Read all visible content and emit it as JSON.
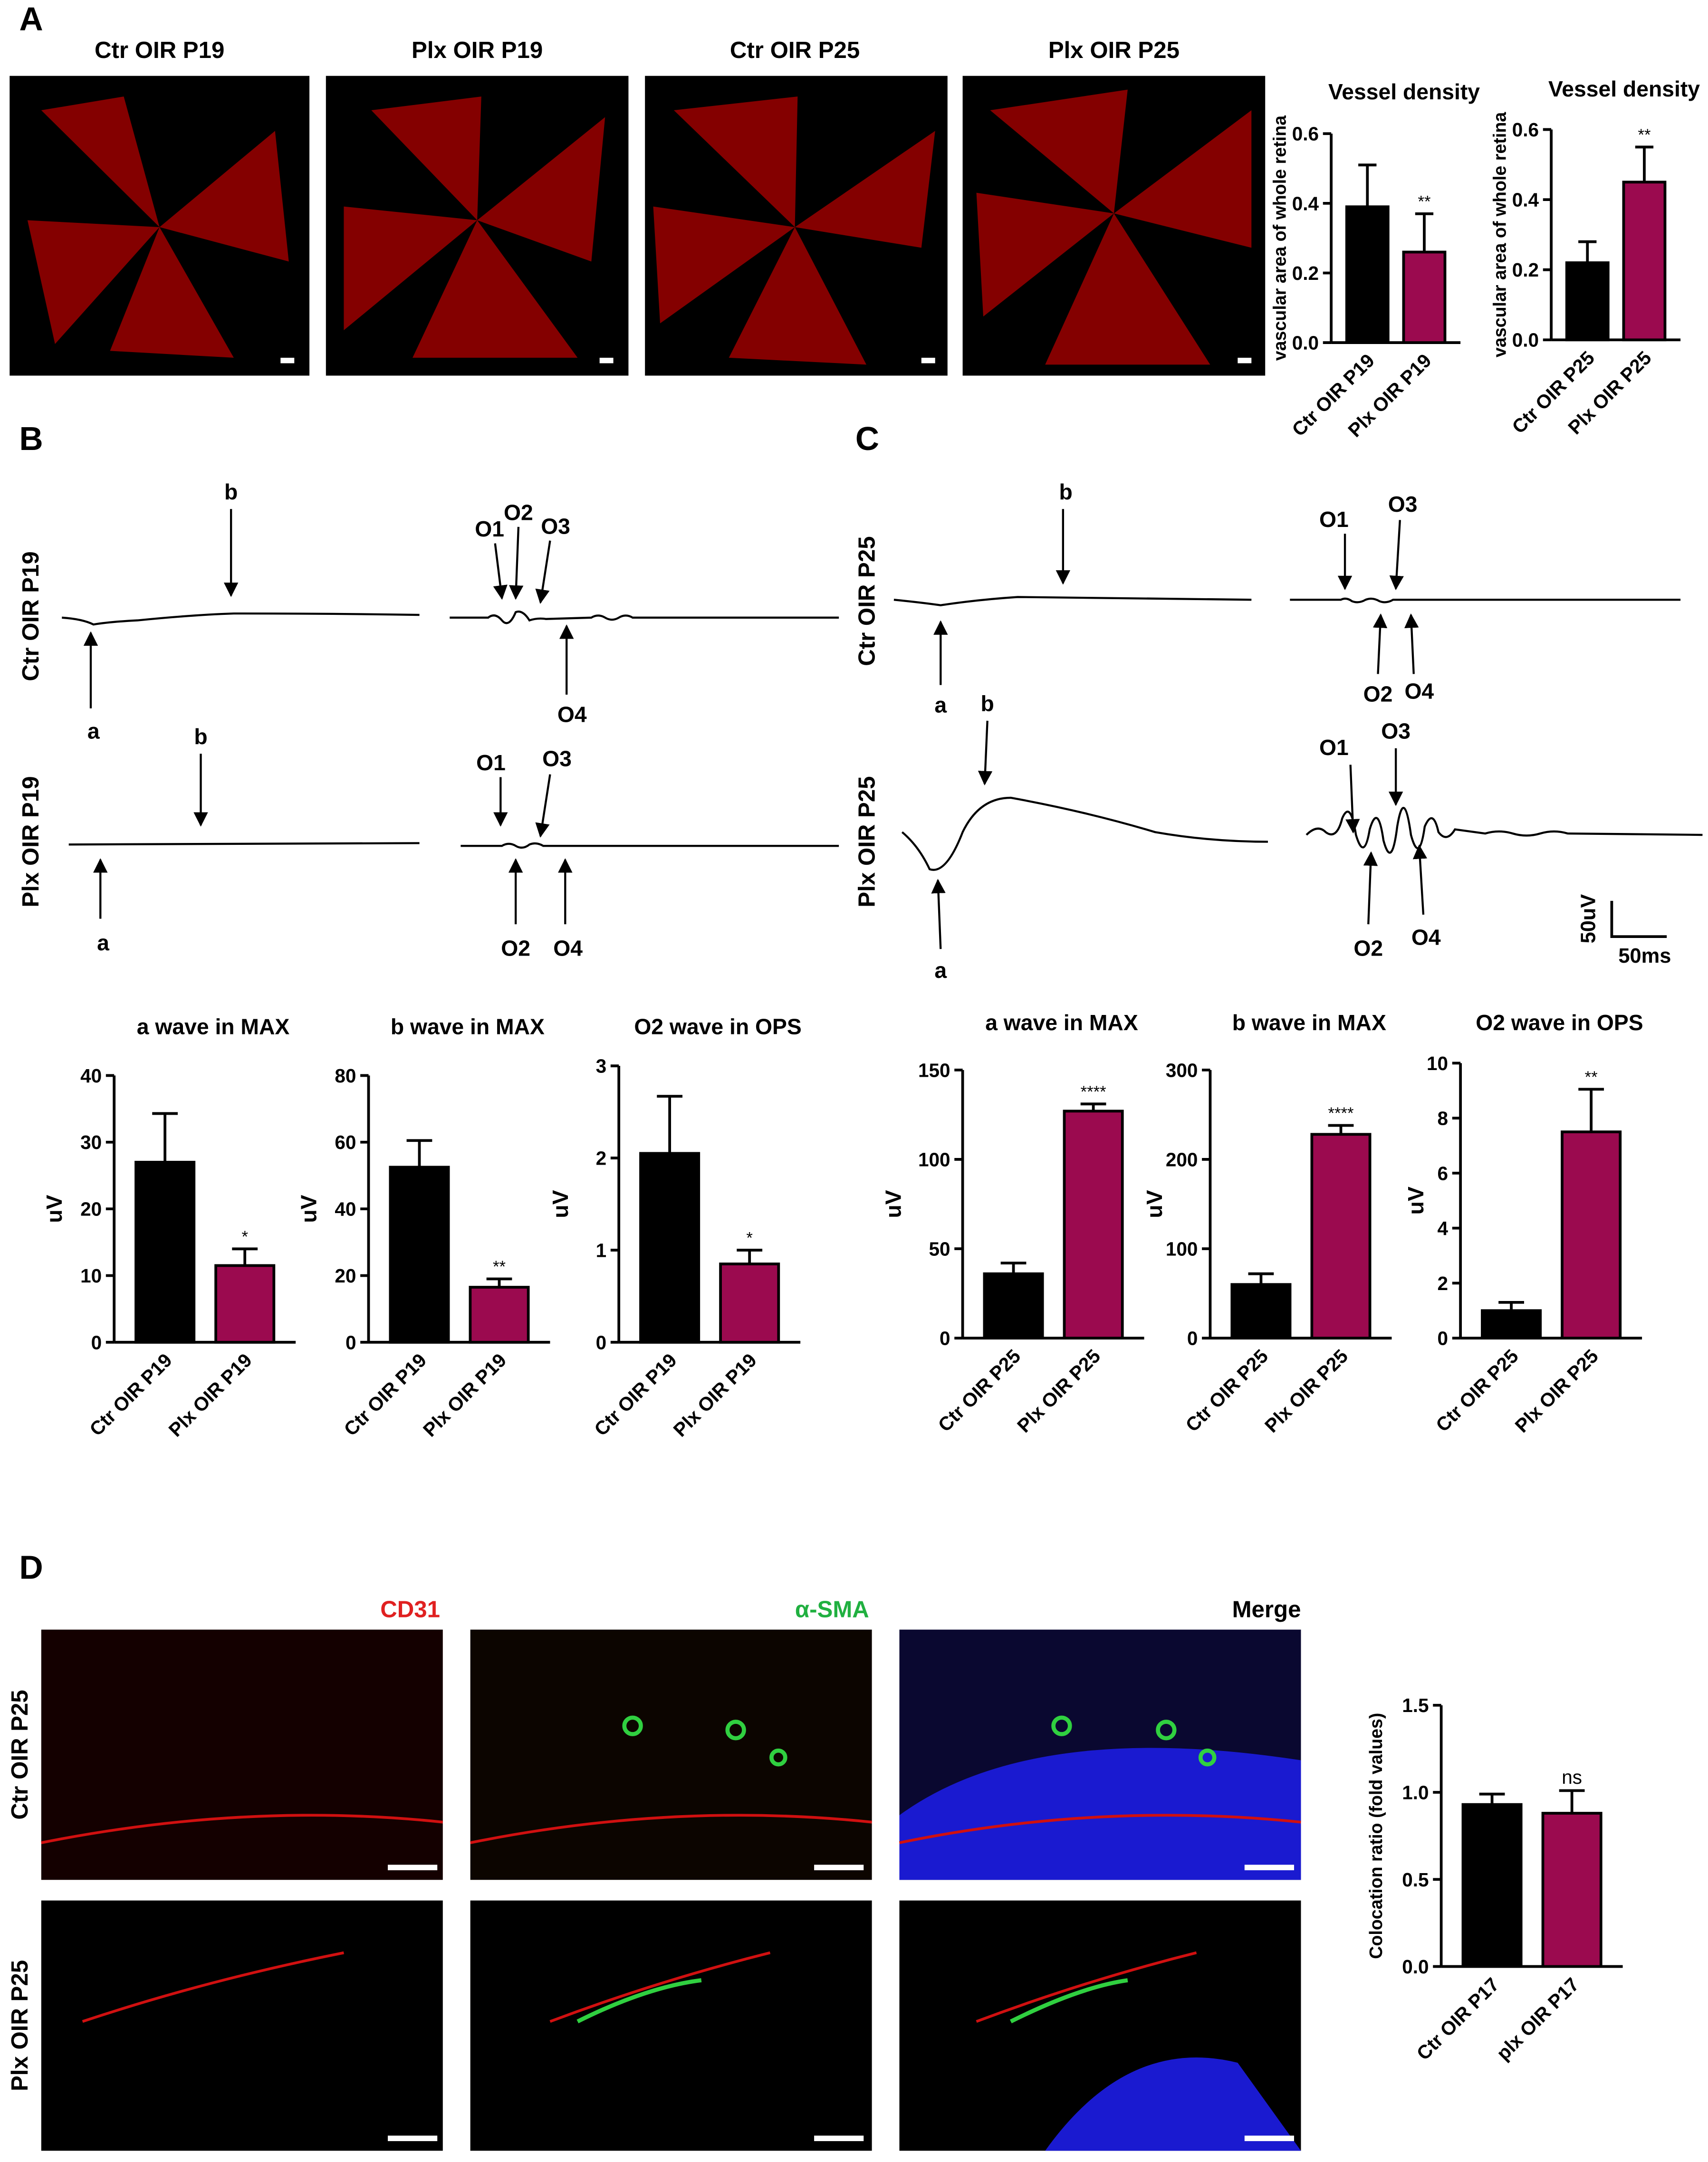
{
  "panel_labels": [
    "A",
    "B",
    "C",
    "D"
  ],
  "retina_images": [
    "Ctr OIR P19",
    "Plx OIR P19",
    "Ctr OIR P25",
    "Plx OIR P25"
  ],
  "erg": [
    {
      "label": "Ctr OIR P19",
      "markers": [
        "a",
        "b",
        "O1",
        "O2",
        "O3",
        "O4"
      ]
    },
    {
      "label": "Plx OIR P19",
      "markers": [
        "a",
        "b",
        "O1",
        "O2",
        "O3",
        "O4"
      ]
    },
    {
      "label": "Ctr OIR P25",
      "markers": [
        "a",
        "b",
        "O1",
        "O2",
        "O3",
        "O4"
      ]
    },
    {
      "label": "Plx OIR P25",
      "markers": [
        "a",
        "b",
        "O1",
        "O2",
        "O3",
        "O4"
      ]
    }
  ],
  "erg_scale": [
    "50uV",
    "50ms"
  ],
  "histology": {
    "columns": [
      "CD31",
      "α-SMA",
      "Merge"
    ],
    "rows": [
      "Ctr OIR P25",
      "Plx OIR P25"
    ]
  },
  "chart_data": [
    {
      "type": "bar",
      "title": "Vessel density",
      "ylabel": "vascular area of whole retina",
      "categories": [
        "Ctr OIR P19",
        "Plx OIR P19"
      ],
      "values": [
        0.39,
        0.26
      ],
      "errors": [
        0.12,
        0.11
      ],
      "colors": [
        "#000000",
        "#9b0a4f"
      ],
      "significance": "**",
      "ylim": [
        0,
        0.6
      ],
      "yticks": [
        {
          "value": 0,
          "label": "0.0"
        },
        0.2,
        0.4,
        0.6
      ]
    },
    {
      "type": "bar",
      "title": "Vessel density",
      "ylabel": "vascular area of whole retina",
      "categories": [
        "Ctr OIR P25",
        "Plx OIR P25"
      ],
      "values": [
        0.22,
        0.45
      ],
      "errors": [
        0.06,
        0.1
      ],
      "colors": [
        "#000000",
        "#9b0a4f"
      ],
      "significance": "**",
      "ylim": [
        0,
        0.6
      ],
      "yticks": [
        {
          "value": 0,
          "label": "0.0"
        },
        0.2,
        0.4,
        0.6
      ]
    },
    {
      "type": "bar",
      "title": "a wave in MAX",
      "ylabel": "uV",
      "categories": [
        "Ctr OIR P19",
        "Plx OIR P19"
      ],
      "values": [
        27,
        11.5
      ],
      "errors": [
        7.3,
        2.5
      ],
      "colors": [
        "#000000",
        "#9b0a4f"
      ],
      "significance": "*",
      "ylim": [
        0,
        40
      ],
      "yticks": [
        0,
        10,
        20,
        30,
        40
      ]
    },
    {
      "type": "bar",
      "title": "b wave in MAX",
      "ylabel": "uV",
      "categories": [
        "Ctr OIR P19",
        "Plx OIR P19"
      ],
      "values": [
        52.5,
        16.5
      ],
      "errors": [
        8,
        2.5
      ],
      "colors": [
        "#000000",
        "#9b0a4f"
      ],
      "significance": "**",
      "ylim": [
        0,
        80
      ],
      "yticks": [
        0,
        20,
        40,
        60,
        80
      ]
    },
    {
      "type": "bar",
      "title": "O2 wave in OPS",
      "ylabel": "uV",
      "categories": [
        "Ctr OIR P19",
        "Plx OIR P19"
      ],
      "values": [
        2.05,
        0.85
      ],
      "errors": [
        0.62,
        0.15
      ],
      "colors": [
        "#000000",
        "#9b0a4f"
      ],
      "significance": "*",
      "ylim": [
        0,
        3
      ],
      "yticks": [
        0,
        1,
        2,
        3
      ]
    },
    {
      "type": "bar",
      "title": "a wave in MAX",
      "ylabel": "uV",
      "categories": [
        "Ctr OIR P25",
        "Plx OIR P25"
      ],
      "values": [
        36,
        127
      ],
      "errors": [
        6,
        4
      ],
      "colors": [
        "#000000",
        "#9b0a4f"
      ],
      "significance": "****",
      "ylim": [
        0,
        150
      ],
      "yticks": [
        0,
        50,
        100,
        150
      ]
    },
    {
      "type": "bar",
      "title": "b wave in MAX",
      "ylabel": "uV",
      "categories": [
        "Ctr OIR P25",
        "Plx OIR P25"
      ],
      "values": [
        60,
        228
      ],
      "errors": [
        12,
        10
      ],
      "colors": [
        "#000000",
        "#9b0a4f"
      ],
      "significance": "****",
      "ylim": [
        0,
        300
      ],
      "yticks": [
        0,
        100,
        200,
        300
      ]
    },
    {
      "type": "bar",
      "title": "O2 wave in OPS",
      "ylabel": "uV",
      "categories": [
        "Ctr OIR P25",
        "Plx OIR P25"
      ],
      "values": [
        1.0,
        7.5
      ],
      "errors": [
        0.3,
        1.55
      ],
      "colors": [
        "#000000",
        "#9b0a4f"
      ],
      "significance": "**",
      "ylim": [
        0,
        10
      ],
      "yticks": [
        0,
        2,
        4,
        6,
        8,
        10
      ]
    },
    {
      "type": "bar",
      "ylabel": "Colocation ratio (fold values)",
      "categories": [
        "Ctr OIR P17",
        "plx OIR P17"
      ],
      "values": [
        0.93,
        0.88
      ],
      "errors": [
        0.06,
        0.13
      ],
      "colors": [
        "#000000",
        "#9b0a4f"
      ],
      "significance": "ns",
      "ylim": [
        0,
        1.5
      ],
      "yticks": [
        {
          "value": 0,
          "label": "0.0"
        },
        0.5,
        {
          "value": 1,
          "label": "1.0"
        },
        1.5
      ]
    }
  ]
}
